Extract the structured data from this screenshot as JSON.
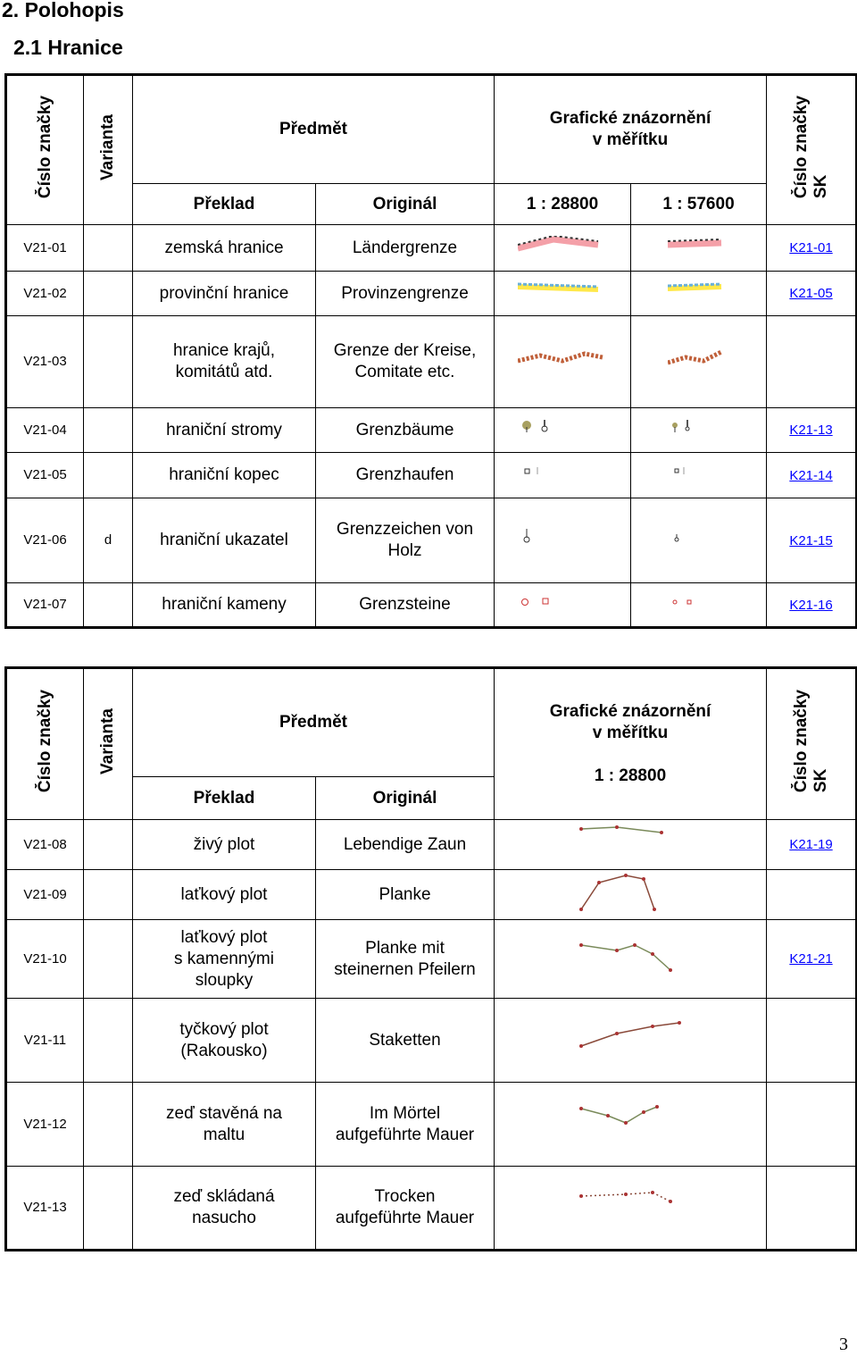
{
  "headings": {
    "section": "2. Polohopis",
    "subsection": "2.1 Hranice"
  },
  "table1": {
    "header": {
      "code": "Číslo značky",
      "variant": "Varianta",
      "subject": "Předmět",
      "graphic": "Grafické znázornění\nv měřítku",
      "sk": "Číslo značky\nSK",
      "translation": "Překlad",
      "original": "Originál",
      "scales": [
        "1 : 28800",
        "1 : 57600"
      ]
    },
    "rows": [
      {
        "code": "V21-01",
        "translation": "zemská hranice",
        "original": "Ländergrenze",
        "sk": "K21-01"
      },
      {
        "code": "V21-02",
        "translation": "provinční hranice",
        "original": "Provinzengrenze",
        "sk": "K21-05"
      },
      {
        "code": "V21-03",
        "translation": "hranice krajů,\nkomitátů atd.",
        "original": "Grenze der Kreise,\nComitate etc."
      },
      {
        "code": "V21-04",
        "translation": "hraniční stromy",
        "original": "Grenzbäume",
        "sk": "K21-13"
      },
      {
        "code": "V21-05",
        "translation": "hraniční kopec",
        "original": "Grenzhaufen",
        "sk": "K21-14"
      },
      {
        "code": "V21-06",
        "variant": "d",
        "translation": "hraniční ukazatel",
        "original": "Grenzzeichen von\nHolz",
        "sk": "K21-15"
      },
      {
        "code": "V21-07",
        "translation": "hraniční kameny",
        "original": "Grenzsteine",
        "sk": "K21-16"
      }
    ]
  },
  "table2": {
    "header": {
      "code": "Číslo značky",
      "variant": "Varianta",
      "subject": "Předmět",
      "graphic": "Grafické znázornění\nv měřítku",
      "scale": "1 : 28800",
      "sk": "Číslo značky\nSK",
      "translation": "Překlad",
      "original": "Originál"
    },
    "rows": [
      {
        "code": "V21-08",
        "translation": "živý plot",
        "original": "Lebendige Zaun",
        "sk": "K21-19"
      },
      {
        "code": "V21-09",
        "translation": "laťkový plot",
        "original": "Planke"
      },
      {
        "code": "V21-10",
        "translation": "laťkový plot\ns kamennými\nsloupky",
        "original": "Planke mit\nsteinernen Pfeilern",
        "sk": "K21-21"
      },
      {
        "code": "V21-11",
        "translation": "tyčkový plot\n(Rakousko)",
        "original": "Staketten"
      },
      {
        "code": "V21-12",
        "translation": "zeď stavěná na\nmaltu",
        "original": "Im Mörtel\naufgeführte Mauer"
      },
      {
        "code": "V21-13",
        "translation": "zeď skládaná\nnasucho",
        "original": "Trocken\naufgeführte Mauer"
      }
    ]
  },
  "page_number": "3"
}
